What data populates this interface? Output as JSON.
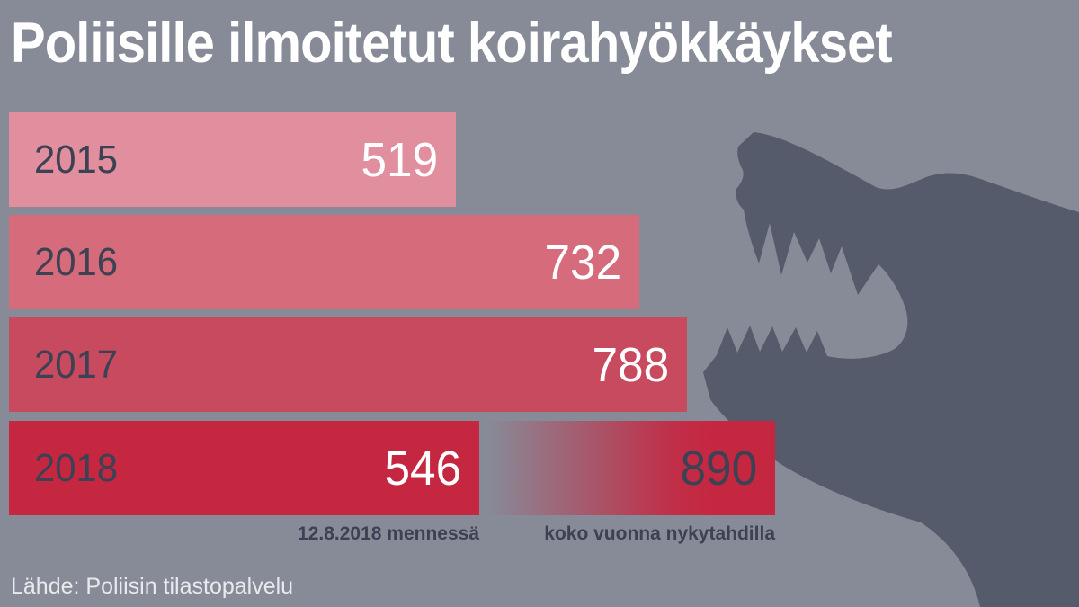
{
  "title": "Poliisille ilmoitetut koirahyökkäykset",
  "source": "Lähde: Poliisin tilastopalvelu",
  "chart_data": {
    "type": "bar",
    "orientation": "horizontal",
    "title": "Poliisille ilmoitetut koirahyökkäykset",
    "categories": [
      "2015",
      "2016",
      "2017",
      "2018"
    ],
    "values": [
      519,
      732,
      788,
      546
    ],
    "projection": {
      "category": "2018",
      "value": 890,
      "label": "koko vuonna nykytahdilla"
    },
    "actual_label": "12.8.2018 mennessä",
    "xlim": [
      0,
      890
    ],
    "grid": false,
    "legend": null,
    "bar_colors": [
      "#e18f9e",
      "#d66b7b",
      "#c74a5f",
      "#c52741"
    ],
    "value_label_color": "#ffffff",
    "projection_value_color": "#3c4254"
  },
  "colors": {
    "background": "#878b98",
    "dog_silhouette": "#555b6a",
    "text_dark": "#3c4254",
    "text_light": "#ffffff",
    "source_text": "#e9eaee"
  },
  "icons": {
    "dog": "snarling-dog-silhouette"
  }
}
